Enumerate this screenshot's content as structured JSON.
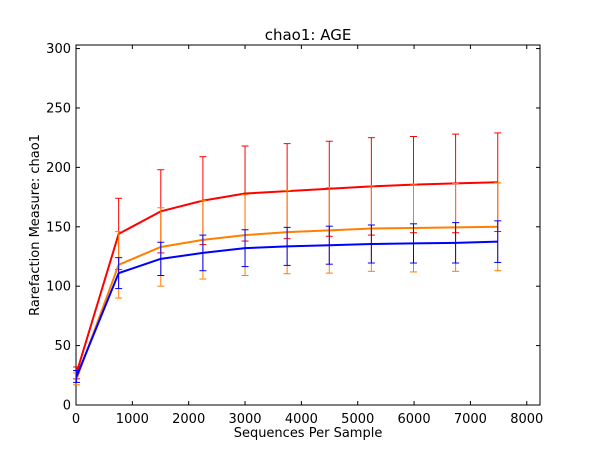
{
  "chart_data": {
    "type": "line",
    "title": "chao1: AGE",
    "xlabel": "Sequences Per Sample",
    "ylabel": "Rarefaction Measure: chao1",
    "xlim": [
      0,
      8235
    ],
    "ylim": [
      0,
      303
    ],
    "xticks": [
      0,
      1000,
      2000,
      3000,
      4000,
      5000,
      6000,
      7000,
      8000
    ],
    "yticks": [
      0,
      50,
      100,
      150,
      200,
      250,
      300
    ],
    "x": [
      10,
      757,
      1505,
      2252,
      3000,
      3747,
      4495,
      5242,
      5990,
      6737,
      7485
    ],
    "series": [
      {
        "color": "#ff0000",
        "values": [
          27,
          144,
          163,
          172,
          178,
          180,
          182,
          184,
          185.5,
          186.5,
          187.5
        ],
        "errors": [
          5,
          30,
          35,
          37,
          40,
          40,
          40,
          41,
          40.5,
          41.5,
          41.5
        ]
      },
      {
        "color": "#ff7f00",
        "values": [
          22,
          118,
          133,
          139,
          143,
          145.5,
          147,
          148.5,
          149,
          149.5,
          150
        ],
        "errors": [
          5,
          28,
          33,
          33,
          34,
          35,
          36,
          36,
          37,
          37,
          37
        ]
      },
      {
        "color": "#0000ff",
        "values": [
          24,
          111,
          123,
          128,
          132,
          133.5,
          134.5,
          135.5,
          136,
          136.5,
          137.5
        ],
        "errors": [
          5,
          13,
          14,
          15,
          15.5,
          16,
          16,
          16,
          16.5,
          17,
          17.5
        ]
      }
    ],
    "grid": false,
    "legend": "none"
  }
}
